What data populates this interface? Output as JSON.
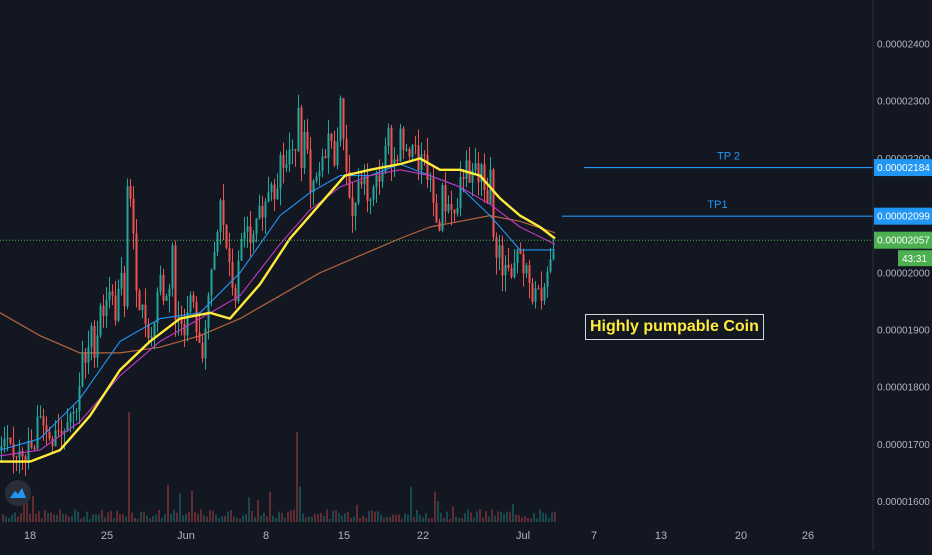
{
  "chart_data": {
    "type": "candlestick",
    "annotation": "Highly pumpable Coin",
    "y_axis": {
      "ticks": [
        "0.00002400",
        "0.00002300",
        "0.00002200",
        "0.00002100",
        "0.00002000",
        "0.00001900",
        "0.00001800",
        "0.00001700",
        "0.00001600"
      ],
      "range": [
        1.57e-05,
        2.48e-05
      ],
      "side": "right"
    },
    "x_axis": {
      "ticks": [
        "18",
        "25",
        "Jun",
        "8",
        "15",
        "22",
        "Jul",
        "7",
        "13",
        "20",
        "26"
      ]
    },
    "levels": [
      {
        "name": "TP 2",
        "value": 2.184e-05,
        "label": "0.00002184",
        "color": "#2196f3"
      },
      {
        "name": "TP1",
        "value": 2.099e-05,
        "label": "0.00002099",
        "color": "#2196f3"
      }
    ],
    "current_price": {
      "value": 2.057e-05,
      "label": "0.00002057",
      "countdown": "43:31",
      "color": "#4caf50"
    },
    "close_path": [
      [
        0,
        1.69e-05
      ],
      [
        8,
        1.7e-05
      ],
      [
        12,
        1.67e-05
      ],
      [
        20,
        1.7e-05
      ],
      [
        26,
        1.68e-05
      ],
      [
        30,
        1.71e-05
      ],
      [
        33,
        1.66e-05
      ],
      [
        36,
        1.73e-05
      ],
      [
        40,
        1.76e-05
      ],
      [
        46,
        1.72e-05
      ],
      [
        52,
        1.71e-05
      ],
      [
        56,
        1.74e-05
      ],
      [
        62,
        1.72e-05
      ],
      [
        68,
        1.76e-05
      ],
      [
        74,
        1.75e-05
      ],
      [
        78,
        1.79e-05
      ],
      [
        82,
        1.85e-05
      ],
      [
        86,
        1.83e-05
      ],
      [
        90,
        1.9e-05
      ],
      [
        95,
        1.86e-05
      ],
      [
        100,
        1.95e-05
      ],
      [
        105,
        1.92e-05
      ],
      [
        108,
        1.99e-05
      ],
      [
        112,
        1.95e-05
      ],
      [
        116,
        1.92e-05
      ],
      [
        120,
        2.01e-05
      ],
      [
        124,
        1.93e-05
      ],
      [
        127,
        2.16e-05
      ],
      [
        131,
        2.12e-05
      ],
      [
        134,
        2.02e-05
      ],
      [
        138,
        1.95e-05
      ],
      [
        143,
        1.93e-05
      ],
      [
        148,
        1.9e-05
      ],
      [
        152,
        1.88e-05
      ],
      [
        156,
        1.96e-05
      ],
      [
        160,
        1.99e-05
      ],
      [
        164,
        1.95e-05
      ],
      [
        168,
        1.96e-05
      ],
      [
        172,
        2.05e-05
      ],
      [
        175,
        1.91e-05
      ],
      [
        180,
        1.93e-05
      ],
      [
        185,
        1.9e-05
      ],
      [
        190,
        1.96e-05
      ],
      [
        195,
        1.92e-05
      ],
      [
        198,
        1.88e-05
      ],
      [
        201,
        1.83e-05
      ],
      [
        204,
        1.9e-05
      ],
      [
        208,
        1.96e-05
      ],
      [
        212,
        2e-05
      ],
      [
        216,
        2.05e-05
      ],
      [
        220,
        2.12e-05
      ],
      [
        225,
        2.06e-05
      ],
      [
        230,
        1.99e-05
      ],
      [
        235,
        1.96e-05
      ],
      [
        240,
        2.04e-05
      ],
      [
        245,
        2.09e-05
      ],
      [
        250,
        2.04e-05
      ],
      [
        255,
        2.07e-05
      ],
      [
        260,
        2.11e-05
      ],
      [
        265,
        2.12e-05
      ],
      [
        270,
        2.17e-05
      ],
      [
        275,
        2.14e-05
      ],
      [
        280,
        2.2e-05
      ],
      [
        285,
        2.18e-05
      ],
      [
        290,
        2.22e-05
      ],
      [
        294,
        2.18e-05
      ],
      [
        297,
        2.33e-05
      ],
      [
        301,
        2.2e-05
      ],
      [
        305,
        2.25e-05
      ],
      [
        310,
        2.13e-05
      ],
      [
        316,
        2.16e-05
      ],
      [
        322,
        2.19e-05
      ],
      [
        328,
        2.24e-05
      ],
      [
        334,
        2.2e-05
      ],
      [
        340,
        2.29e-05
      ],
      [
        344,
        2.23e-05
      ],
      [
        348,
        2.14e-05
      ],
      [
        352,
        2.1e-05
      ],
      [
        357,
        2.14e-05
      ],
      [
        362,
        2.17e-05
      ],
      [
        366,
        2.14e-05
      ],
      [
        370,
        2.12e-05
      ],
      [
        376,
        2.16e-05
      ],
      [
        382,
        2.18e-05
      ],
      [
        388,
        2.24e-05
      ],
      [
        392,
        2.19e-05
      ],
      [
        396,
        2.2e-05
      ],
      [
        400,
        2.24e-05
      ],
      [
        406,
        2.2e-05
      ],
      [
        412,
        2.23e-05
      ],
      [
        418,
        2.19e-05
      ],
      [
        422,
        2.2e-05
      ],
      [
        426,
        2.18e-05
      ],
      [
        430,
        2.15e-05
      ],
      [
        434,
        2.11e-05
      ],
      [
        438,
        2.07e-05
      ],
      [
        442,
        2.14e-05
      ],
      [
        446,
        2.11e-05
      ],
      [
        450,
        2.13e-05
      ],
      [
        455,
        2.09e-05
      ],
      [
        460,
        2.16e-05
      ],
      [
        465,
        2.19e-05
      ],
      [
        470,
        2.14e-05
      ],
      [
        474,
        2.2e-05
      ],
      [
        478,
        2.16e-05
      ],
      [
        482,
        2.18e-05
      ],
      [
        486,
        2.12e-05
      ],
      [
        490,
        2.17e-05
      ],
      [
        494,
        2.02e-05
      ],
      [
        498,
        2.06e-05
      ],
      [
        502,
        1.99e-05
      ],
      [
        506,
        2.02e-05
      ],
      [
        510,
        1.98e-05
      ],
      [
        514,
        2.01e-05
      ],
      [
        518,
        2.06e-05
      ],
      [
        522,
        1.98e-05
      ],
      [
        526,
        2.01e-05
      ],
      [
        530,
        1.97e-05
      ],
      [
        534,
        1.95e-05
      ],
      [
        538,
        1.99e-05
      ],
      [
        542,
        1.96e-05
      ],
      [
        546,
        2e-05
      ],
      [
        550,
        2.02e-05
      ],
      [
        555,
        2.057e-05
      ]
    ],
    "ma_slow": [
      [
        0,
        1.93e-05
      ],
      [
        40,
        1.89e-05
      ],
      [
        80,
        1.86e-05
      ],
      [
        120,
        1.86e-05
      ],
      [
        160,
        1.87e-05
      ],
      [
        200,
        1.89e-05
      ],
      [
        240,
        1.92e-05
      ],
      [
        280,
        1.96e-05
      ],
      [
        320,
        2e-05
      ],
      [
        360,
        2.03e-05
      ],
      [
        400,
        2.06e-05
      ],
      [
        430,
        2.08e-05
      ],
      [
        460,
        2.09e-05
      ],
      [
        490,
        2.1e-05
      ],
      [
        520,
        2.09e-05
      ],
      [
        555,
        2.07e-05
      ]
    ],
    "ma_yellow": [
      [
        0,
        1.67e-05
      ],
      [
        30,
        1.67e-05
      ],
      [
        60,
        1.69e-05
      ],
      [
        90,
        1.75e-05
      ],
      [
        120,
        1.83e-05
      ],
      [
        150,
        1.88e-05
      ],
      [
        180,
        1.92e-05
      ],
      [
        210,
        1.93e-05
      ],
      [
        230,
        1.92e-05
      ],
      [
        260,
        1.98e-05
      ],
      [
        290,
        2.06e-05
      ],
      [
        320,
        2.12e-05
      ],
      [
        345,
        2.17e-05
      ],
      [
        370,
        2.18e-05
      ],
      [
        400,
        2.19e-05
      ],
      [
        420,
        2.2e-05
      ],
      [
        440,
        2.18e-05
      ],
      [
        460,
        2.18e-05
      ],
      [
        480,
        2.17e-05
      ],
      [
        500,
        2.13e-05
      ],
      [
        520,
        2.1e-05
      ],
      [
        540,
        2.08e-05
      ],
      [
        555,
        2.06e-05
      ]
    ],
    "ma_magenta": [
      [
        0,
        1.68e-05
      ],
      [
        40,
        1.69e-05
      ],
      [
        80,
        1.74e-05
      ],
      [
        120,
        1.82e-05
      ],
      [
        160,
        1.88e-05
      ],
      [
        200,
        1.92e-05
      ],
      [
        240,
        1.96e-05
      ],
      [
        280,
        2.05e-05
      ],
      [
        310,
        2.11e-05
      ],
      [
        340,
        2.15e-05
      ],
      [
        370,
        2.17e-05
      ],
      [
        400,
        2.18e-05
      ],
      [
        430,
        2.17e-05
      ],
      [
        460,
        2.15e-05
      ],
      [
        490,
        2.12e-05
      ],
      [
        520,
        2.08e-05
      ],
      [
        555,
        2.05e-05
      ]
    ],
    "ma_blue": [
      [
        0,
        1.69e-05
      ],
      [
        40,
        1.71e-05
      ],
      [
        80,
        1.78e-05
      ],
      [
        120,
        1.88e-05
      ],
      [
        160,
        1.92e-05
      ],
      [
        200,
        1.93e-05
      ],
      [
        240,
        2e-05
      ],
      [
        280,
        2.1e-05
      ],
      [
        310,
        2.14e-05
      ],
      [
        340,
        2.17e-05
      ],
      [
        370,
        2.17e-05
      ],
      [
        400,
        2.19e-05
      ],
      [
        430,
        2.17e-05
      ],
      [
        460,
        2.15e-05
      ],
      [
        490,
        2.1e-05
      ],
      [
        520,
        2.04e-05
      ],
      [
        555,
        2.04e-05
      ]
    ]
  }
}
